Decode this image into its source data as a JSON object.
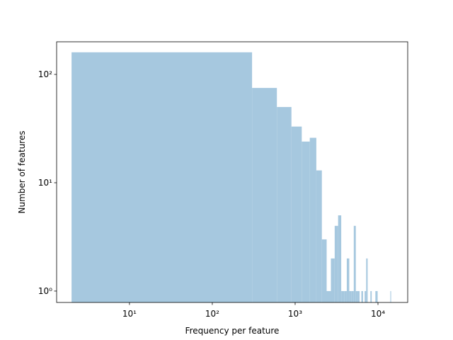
{
  "chart_data": {
    "type": "histogram",
    "log_x": true,
    "log_y": true,
    "color": "#a6c8df",
    "x_label": "Frequency per feature",
    "y_label": "Number of features",
    "bins": [
      2,
      302,
      602,
      902,
      1202,
      1502,
      1802,
      2102,
      2402,
      2702,
      3002,
      3302,
      3602,
      3902,
      4202,
      4502,
      4802,
      5102,
      5402,
      5702,
      6002,
      6302,
      6602,
      6902,
      7202,
      7502,
      7802,
      8102,
      8402,
      8702,
      9002,
      9302,
      9602,
      9902,
      10202,
      10502,
      10802,
      11102,
      11402,
      11702,
      12002,
      12302,
      12602,
      12902,
      13202,
      13502,
      13802,
      14102,
      14402,
      14702,
      15002
    ],
    "counts": [
      160,
      75,
      50,
      33,
      24,
      26,
      13,
      3,
      1,
      2,
      4,
      5,
      1,
      1,
      2,
      1,
      1,
      4,
      1,
      1,
      0,
      1,
      0,
      1,
      2,
      0,
      0,
      1,
      0,
      0,
      0,
      1,
      1,
      0,
      0,
      0,
      0,
      0,
      0,
      0,
      0,
      0,
      0,
      0,
      0,
      0,
      0,
      1,
      0,
      0
    ],
    "xlim": [
      1.32,
      22850
    ],
    "ylim": [
      0.785,
      200
    ],
    "xticks": [
      {
        "value": 10,
        "label": "10¹"
      },
      {
        "value": 100,
        "label": "10²"
      },
      {
        "value": 1000,
        "label": "10³"
      },
      {
        "value": 10000,
        "label": "10⁴"
      }
    ],
    "yticks": [
      {
        "value": 1,
        "label": "10⁰"
      },
      {
        "value": 10,
        "label": "10¹"
      },
      {
        "value": 100,
        "label": "10²"
      }
    ]
  }
}
